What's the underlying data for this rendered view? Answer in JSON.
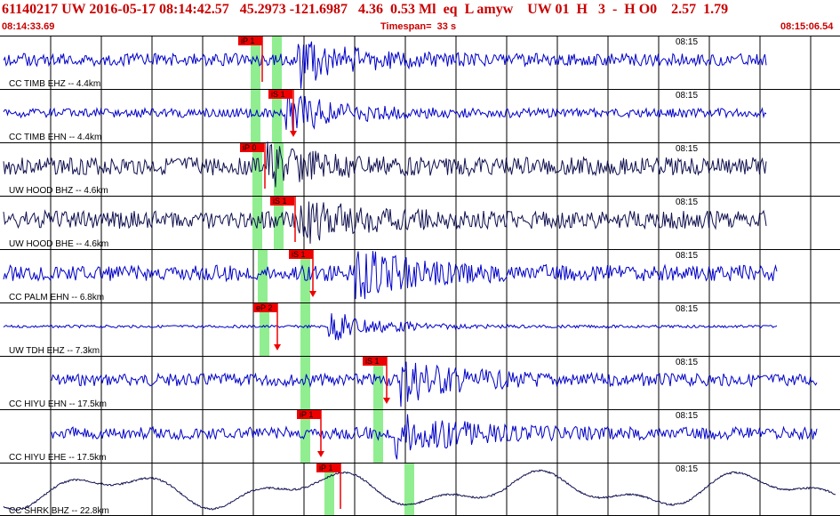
{
  "header": {
    "title": "61140217 UW 2016-05-17 08:14:42.57   45.2973 -121.6987   4.36  0.53 Ml  eq  L amyw    UW 01  H   3  -  H O0    2.57  1.79",
    "start_time": "08:14:33.69",
    "timespan": "Timespan=  33 s",
    "end_time": "08:15:06.54"
  },
  "colors": {
    "header_red": "#c80000",
    "trace_blue": "#0000c8",
    "trace_navy": "#101050",
    "pick_red": "#ee0000",
    "window_green": "#90ee90",
    "grid": "#000000"
  },
  "tick_label": "08:15",
  "traces": [
    {
      "label": "CC TIMB EHZ -- 4.4km",
      "color": "blue",
      "picks": [
        {
          "label": "iP 1",
          "flag_x": 268,
          "line_x": 295
        }
      ],
      "green": [
        282,
        306
      ],
      "start": 4,
      "end": 862,
      "amp": 7,
      "event": 330,
      "event_amp": 30,
      "seed": 1
    },
    {
      "label": "CC TIMB EHN -- 4.4km",
      "color": "blue",
      "picks": [
        {
          "label": "iS 1",
          "flag_x": 302,
          "line_x": 330,
          "arrow": true
        }
      ],
      "green": [
        282,
        306
      ],
      "start": 4,
      "end": 862,
      "amp": 5,
      "event": 320,
      "event_amp": 24,
      "seed": 2
    },
    {
      "label": "UW HOOD BHZ -- 4.6km",
      "color": "navy",
      "picks": [
        {
          "label": "iP 0",
          "flag_x": 270,
          "line_x": 298
        }
      ],
      "green": [
        284,
        308
      ],
      "start": 4,
      "end": 862,
      "amp": 10,
      "event": 300,
      "event_amp": 20,
      "seed": 3
    },
    {
      "label": "UW HOOD BHE -- 4.6km",
      "color": "navy",
      "picks": [
        {
          "label": "iS 1",
          "flag_x": 304,
          "line_x": 332
        }
      ],
      "green": [
        284,
        308
      ],
      "start": 4,
      "end": 862,
      "amp": 10,
      "event": 335,
      "event_amp": 22,
      "seed": 4
    },
    {
      "label": "CC PALM EHN -- 6.8km",
      "color": "blue",
      "picks": [
        {
          "label": "iS 1",
          "flag_x": 325,
          "line_x": 352,
          "arrow": true
        }
      ],
      "green": [
        290,
        338
      ],
      "start": 4,
      "end": 874,
      "amp": 9,
      "event": 400,
      "event_amp": 25,
      "seed": 5
    },
    {
      "label": "UW TDH EHZ -- 7.3km",
      "color": "blue",
      "picks": [
        {
          "label": "eP 2",
          "flag_x": 285,
          "line_x": 312,
          "arrow": true
        }
      ],
      "green": [
        292,
        338
      ],
      "start": 4,
      "end": 874,
      "amp": 1.5,
      "event": 370,
      "event_amp": 18,
      "seed": 6
    },
    {
      "label": "CC HIYU EHN -- 17.5km",
      "color": "blue",
      "picks": [
        {
          "label": "iS 1",
          "flag_x": 408,
          "line_x": 435,
          "arrow": true
        }
      ],
      "green": [
        338,
        420
      ],
      "start": 58,
      "end": 920,
      "amp": 7,
      "event": 450,
      "event_amp": 26,
      "seed": 7
    },
    {
      "label": "CC HIYU EHE -- 17.5km",
      "color": "blue",
      "picks": [
        {
          "label": "iP 1",
          "flag_x": 334,
          "line_x": 361,
          "arrow": true
        }
      ],
      "green": [
        338,
        420
      ],
      "start": 58,
      "end": 920,
      "amp": 7,
      "event": 445,
      "event_amp": 28,
      "seed": 8
    },
    {
      "label": "CC SHRK BHZ -- 22.8km",
      "color": "navy",
      "picks": [
        {
          "label": "iP 1",
          "flag_x": 356,
          "line_x": 383
        }
      ],
      "green": [
        365,
        455
      ],
      "start": 4,
      "end": 940,
      "amp": 0,
      "event": 0,
      "event_amp": 0,
      "seed": 9
    }
  ]
}
